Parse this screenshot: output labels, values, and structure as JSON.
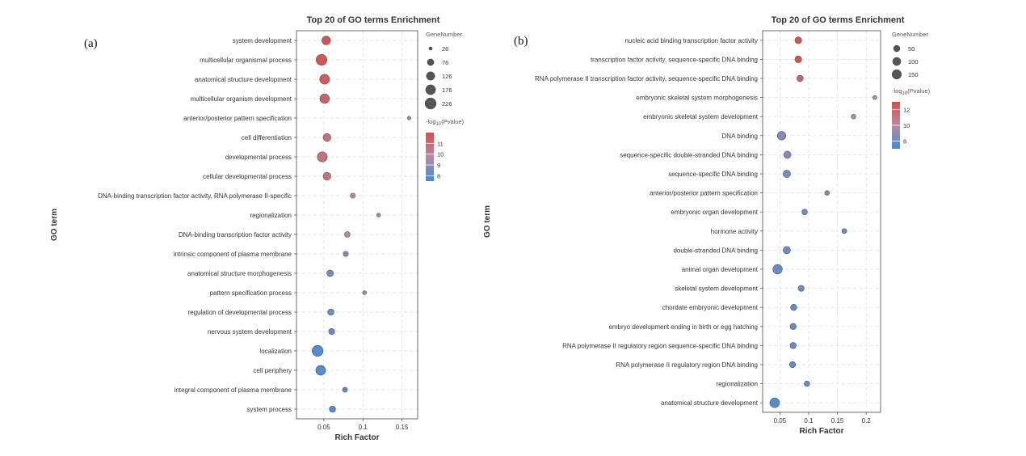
{
  "chart_data": [
    {
      "type": "scatter",
      "panel_label": "(a)",
      "title": "Top 20 of GO terms Enrichment",
      "xlabel": "Rich Factor",
      "ylabel": "GO term",
      "xlim": [
        0.015,
        0.17
      ],
      "xticks": [
        0.05,
        0.1,
        0.15
      ],
      "xtick_labels": [
        "0.05",
        "0.1",
        "0.15"
      ],
      "grid": true,
      "legend_position": "right",
      "size_legend_title": "GeneNumber",
      "size_legend_values": [
        26,
        76,
        126,
        176,
        226
      ],
      "size_legend_labels": [
        "26",
        "76",
        "126",
        "176",
        "226"
      ],
      "color_legend_title": "-log10(Pvalue)",
      "color_range": [
        7.5,
        12
      ],
      "color_legend_ticks": [
        8,
        9,
        10,
        11
      ],
      "color_legend_labels": [
        "8",
        "9",
        "10",
        "11"
      ],
      "colors": {
        "low": "#3b8fdc",
        "mid": "#b78a9f",
        "high": "#d94e4e"
      },
      "points": [
        {
          "term": "system development",
          "x": 0.053,
          "size": 130,
          "log10p": 11.8
        },
        {
          "term": "multicellular organismal process",
          "x": 0.047,
          "size": 210,
          "log10p": 11.7
        },
        {
          "term": "anatomical structure development",
          "x": 0.051,
          "size": 170,
          "log10p": 11.6
        },
        {
          "term": "multicellular organism development",
          "x": 0.051,
          "size": 160,
          "log10p": 11.3
        },
        {
          "term": "anterior/posterior pattern specification",
          "x": 0.159,
          "size": 28,
          "log10p": 10.2
        },
        {
          "term": "cell differentiation",
          "x": 0.054,
          "size": 105,
          "log10p": 10.7
        },
        {
          "term": "developmental process",
          "x": 0.048,
          "size": 175,
          "log10p": 10.7
        },
        {
          "term": "cellular developmental process",
          "x": 0.054,
          "size": 105,
          "log10p": 10.6
        },
        {
          "term": "DNA-binding transcription factor activity, RNA polymerase II-specific",
          "x": 0.087,
          "size": 45,
          "log10p": 9.9
        },
        {
          "term": "regionalization",
          "x": 0.12,
          "size": 32,
          "log10p": 9.8
        },
        {
          "term": "DNA-binding transcription factor activity",
          "x": 0.08,
          "size": 55,
          "log10p": 9.6
        },
        {
          "term": "intrinsic component of plasma membrane",
          "x": 0.078,
          "size": 48,
          "log10p": 8.8
        },
        {
          "term": "anatomical structure morphogenesis",
          "x": 0.058,
          "size": 75,
          "log10p": 8.5
        },
        {
          "term": "pattern specification process",
          "x": 0.102,
          "size": 32,
          "log10p": 9.4
        },
        {
          "term": "regulation of developmental process",
          "x": 0.059,
          "size": 68,
          "log10p": 8.4
        },
        {
          "term": "nervous system development",
          "x": 0.06,
          "size": 62,
          "log10p": 8.2
        },
        {
          "term": "localization",
          "x": 0.042,
          "size": 215,
          "log10p": 7.9
        },
        {
          "term": "cell periphery",
          "x": 0.046,
          "size": 170,
          "log10p": 7.9
        },
        {
          "term": "integral component of plasma membrane",
          "x": 0.077,
          "size": 45,
          "log10p": 8.0
        },
        {
          "term": "system process",
          "x": 0.061,
          "size": 68,
          "log10p": 7.9
        }
      ]
    },
    {
      "type": "scatter",
      "panel_label": "(b)",
      "title": "Top 20 of GO terms Enrichment",
      "xlabel": "Rich Factor",
      "ylabel": "GO term",
      "xlim": [
        0.02,
        0.225
      ],
      "xticks": [
        0.05,
        0.1,
        0.15,
        0.2
      ],
      "xtick_labels": [
        "0.05",
        "0.1",
        "0.15",
        "0.2"
      ],
      "grid": true,
      "legend_position": "right",
      "size_legend_title": "GeneNumber",
      "size_legend_values": [
        50,
        100,
        150
      ],
      "size_legend_labels": [
        "50",
        "100",
        "150"
      ],
      "color_legend_title": "-log10(Pvalue)",
      "color_range": [
        7,
        13
      ],
      "color_legend_ticks": [
        8,
        10,
        12
      ],
      "color_legend_labels": [
        "8",
        "10",
        "12"
      ],
      "colors": {
        "low": "#3b8fdc",
        "mid": "#b78a9f",
        "high": "#d94e4e"
      },
      "points": [
        {
          "term": "nucleic acid binding transcription factor activity",
          "x": 0.082,
          "size": 60,
          "log10p": 12.8
        },
        {
          "term": "transcription factor activity, sequence-specific DNA binding",
          "x": 0.082,
          "size": 60,
          "log10p": 12.8
        },
        {
          "term": "RNA polymerase II transcription factor activity, sequence-specific DNA binding",
          "x": 0.085,
          "size": 48,
          "log10p": 12.0
        },
        {
          "term": "embryonic skeletal system morphogenesis",
          "x": 0.215,
          "size": 18,
          "log10p": 10.0
        },
        {
          "term": "embryonic skeletal system development",
          "x": 0.178,
          "size": 22,
          "log10p": 10.0
        },
        {
          "term": "DNA binding",
          "x": 0.053,
          "size": 110,
          "log10p": 8.8
        },
        {
          "term": "sequence-specific double-stranded DNA binding",
          "x": 0.063,
          "size": 70,
          "log10p": 8.6
        },
        {
          "term": "sequence-specific DNA binding",
          "x": 0.062,
          "size": 75,
          "log10p": 8.5
        },
        {
          "term": "anterior/posterior pattern specification",
          "x": 0.132,
          "size": 22,
          "log10p": 8.6
        },
        {
          "term": "embryonic organ development",
          "x": 0.093,
          "size": 35,
          "log10p": 8.3
        },
        {
          "term": "hormone activity",
          "x": 0.162,
          "size": 25,
          "log10p": 8.2
        },
        {
          "term": "double-stranded DNA binding",
          "x": 0.062,
          "size": 75,
          "log10p": 8.2
        },
        {
          "term": "animal organ development",
          "x": 0.046,
          "size": 150,
          "log10p": 8.0
        },
        {
          "term": "skeletal system development",
          "x": 0.087,
          "size": 42,
          "log10p": 8.1
        },
        {
          "term": "chordate embryonic development",
          "x": 0.074,
          "size": 48,
          "log10p": 8.0
        },
        {
          "term": "embryo development ending in birth or egg hatching",
          "x": 0.073,
          "size": 45,
          "log10p": 8.0
        },
        {
          "term": "RNA polymerase II regulatory region sequence-specific DNA binding",
          "x": 0.073,
          "size": 45,
          "log10p": 7.9
        },
        {
          "term": "RNA polymerase II regulatory region DNA binding",
          "x": 0.072,
          "size": 45,
          "log10p": 7.9
        },
        {
          "term": "regionalization",
          "x": 0.097,
          "size": 32,
          "log10p": 7.9
        },
        {
          "term": "anatomical structure development",
          "x": 0.041,
          "size": 160,
          "log10p": 7.6
        }
      ]
    }
  ]
}
